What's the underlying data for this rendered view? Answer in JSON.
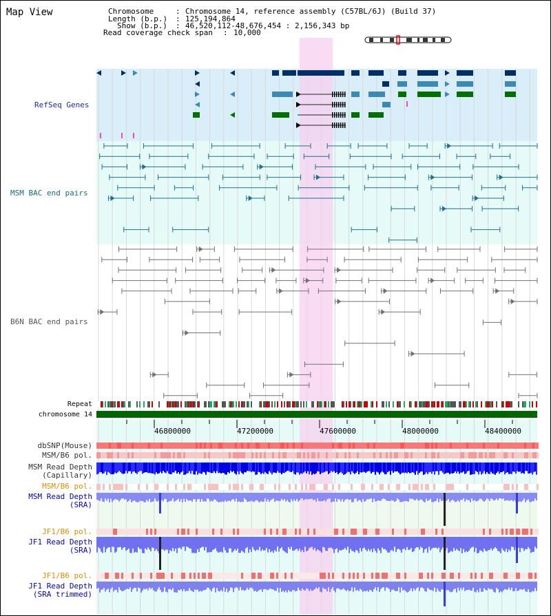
{
  "view_title": "Map View",
  "info": {
    "chromosome_label": "Chromosome",
    "chromosome_value": "Chromosome 14, reference assembly (C57BL/6J) (Build 37)",
    "length_label": "Length (b.p.)",
    "length_value": "125,194,864",
    "show_label": "Show (b.p.)",
    "show_value": "46,520,112-48,676,454 : 2,156,343 bp",
    "coverage_label": "Read coverage check span",
    "coverage_value": "10,000"
  },
  "tracks": {
    "refseq": "RefSeq Genes",
    "msm_bac": "MSM BAC end pairs",
    "b6n_bac": "B6N BAC end pairs",
    "repeat": "Repeat",
    "chromosome": "chromosome 14",
    "dbsnp": "dbSNP(Mouse)",
    "msm_b6_pol": "MSM/B6 pol.",
    "msm_depth_cap_1": "MSM Read Depth",
    "msm_depth_cap_2": "(Capillary)",
    "msm_b6_pol2": "MSM/B6 pol.",
    "msm_depth_sra_1": "MSM Read Depth",
    "msm_depth_sra_2": "(SRA)",
    "jf1_b6_pol": "JF1/B6 pol.",
    "jf1_depth_sra_1": "JF1 Read Depth",
    "jf1_depth_sra_2": "(SRA)",
    "jf1_b6_pol2": "JF1/B6 pol.",
    "jf1_depth_trim_1": "JF1 Read Depth",
    "jf1_depth_trim_2": "(SRA trimmed)"
  },
  "axis": {
    "ticks": [
      "46800000",
      "47200000",
      "47600000",
      "48000000",
      "48400000"
    ]
  },
  "colors": {
    "refseq_bg": "#d9eef9",
    "bac_bg": "#e6fbf8",
    "highlight": "#f7d0f0",
    "chromosome_bar": "#006600",
    "gene_dark": "#002e66",
    "gene_mid": "#3a8ab5",
    "gene_green": "#007000",
    "msm_pair": "#1a7090",
    "b6n_pair": "#707070"
  }
}
